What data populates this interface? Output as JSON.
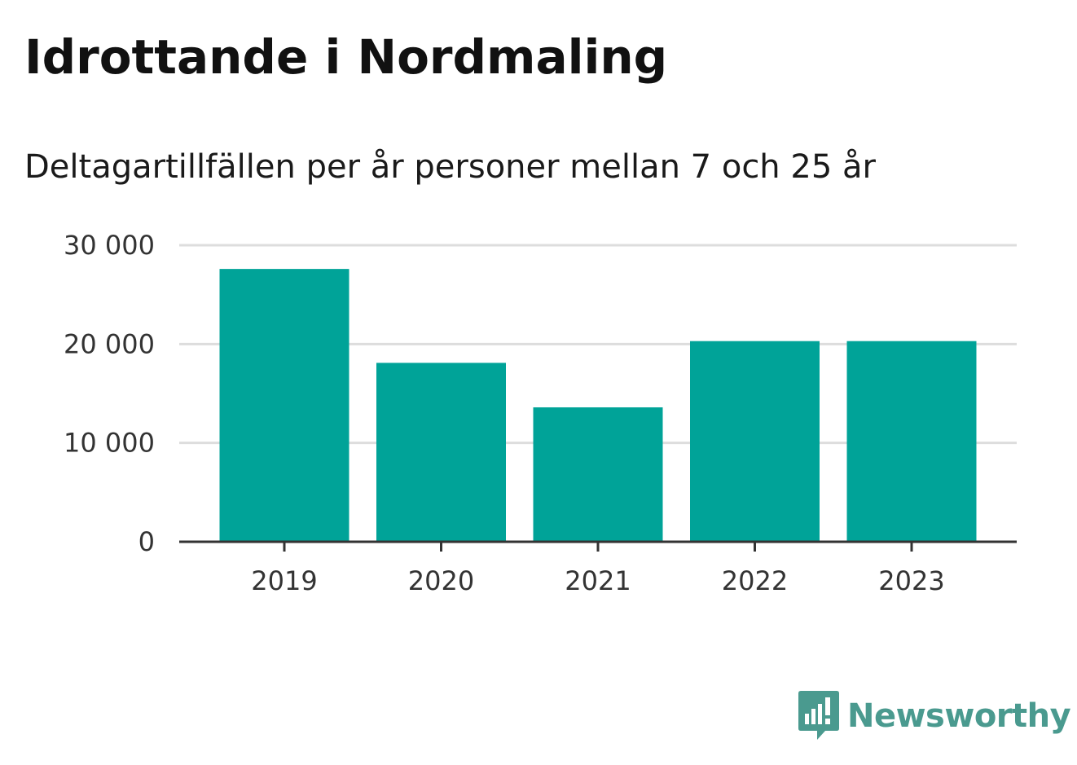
{
  "title": "Idrottande i Nordmaling",
  "subtitle": "Deltagartillfällen per år personer mellan 7 och 25 år",
  "brand": {
    "name": "Newsworthy",
    "icon": "newsworthy-logo-icon",
    "color": "#4a9a8f"
  },
  "colors": {
    "bar": "#00a398",
    "grid": "#dddddd",
    "axis": "#333333"
  },
  "chart_data": {
    "type": "bar",
    "categories": [
      "2019",
      "2020",
      "2021",
      "2022",
      "2023"
    ],
    "values": [
      27600,
      18100,
      13600,
      20300,
      20300
    ],
    "title": "Idrottande i Nordmaling",
    "subtitle": "Deltagartillfällen per år personer mellan 7 och 25 år",
    "xlabel": "",
    "ylabel": "",
    "ylim": [
      0,
      30000
    ],
    "yticks": [
      0,
      10000,
      20000,
      30000
    ],
    "ytick_labels": [
      "0",
      "10 000",
      "20 000",
      "30 000"
    ],
    "grid": true,
    "legend": "none"
  }
}
